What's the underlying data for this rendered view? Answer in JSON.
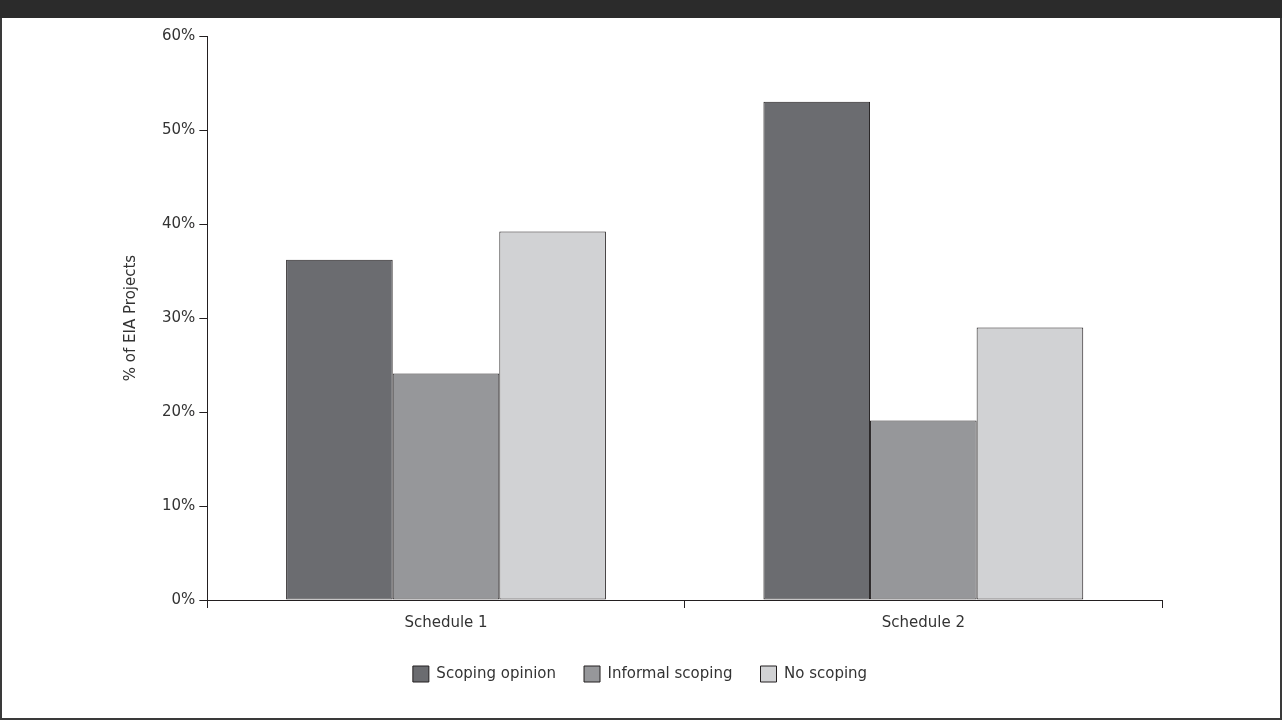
{
  "chart_data": {
    "type": "bar",
    "ylabel": "% of EIA Projects",
    "categories": [
      "Schedule 1",
      "Schedule 2"
    ],
    "series": [
      {
        "name": "Scoping opinion",
        "color": "#6b6c70",
        "values": [
          36.2,
          53.0
        ]
      },
      {
        "name": "Informal scoping",
        "color": "#96979a",
        "values": [
          24.1,
          19.1
        ]
      },
      {
        "name": "No scoping",
        "color": "#d1d2d4",
        "values": [
          39.2,
          29.0
        ]
      }
    ],
    "ylim": [
      0,
      60
    ],
    "yticks": [
      {
        "value": 0,
        "label": "0%"
      },
      {
        "value": 10,
        "label": "10%"
      },
      {
        "value": 20,
        "label": "20%"
      },
      {
        "value": 30,
        "label": "30%"
      },
      {
        "value": 40,
        "label": "40%"
      },
      {
        "value": 50,
        "label": "50%"
      },
      {
        "value": 60,
        "label": "60%"
      }
    ],
    "grid": false,
    "legend": "bottom"
  }
}
